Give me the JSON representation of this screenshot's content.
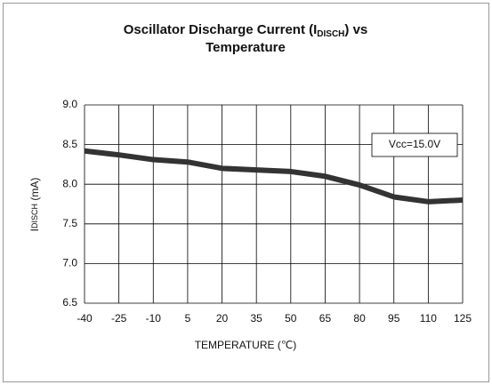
{
  "chart_data": {
    "type": "line",
    "title": [
      "Oscillator Discharge Current (I",
      "DISCH",
      ") vs",
      "Temperature"
    ],
    "ylabel": [
      "I",
      "DISCH",
      " (mA)"
    ],
    "xlabel": "TEMPERATURE (℃)",
    "annotation": "Vcc=15.0V",
    "x": [
      -40,
      -25,
      -10,
      5,
      20,
      35,
      50,
      65,
      80,
      95,
      110,
      125
    ],
    "series": [
      {
        "name": null,
        "color": "#333333",
        "values": [
          8.42,
          8.37,
          8.31,
          8.28,
          8.2,
          8.18,
          8.16,
          8.1,
          7.99,
          7.84,
          7.78,
          7.8
        ]
      }
    ],
    "xlim": [
      -40,
      125
    ],
    "xticks": [
      -40,
      -25,
      -10,
      5,
      20,
      35,
      50,
      65,
      80,
      95,
      110,
      125
    ],
    "ylim": [
      6.5,
      9
    ],
    "yticks": [
      6.5,
      {
        "value": 7,
        "label": "7.0"
      },
      7.5,
      {
        "value": 8,
        "label": "8.0"
      },
      8.5,
      {
        "value": 9,
        "label": "9.0"
      }
    ],
    "grid": true
  }
}
